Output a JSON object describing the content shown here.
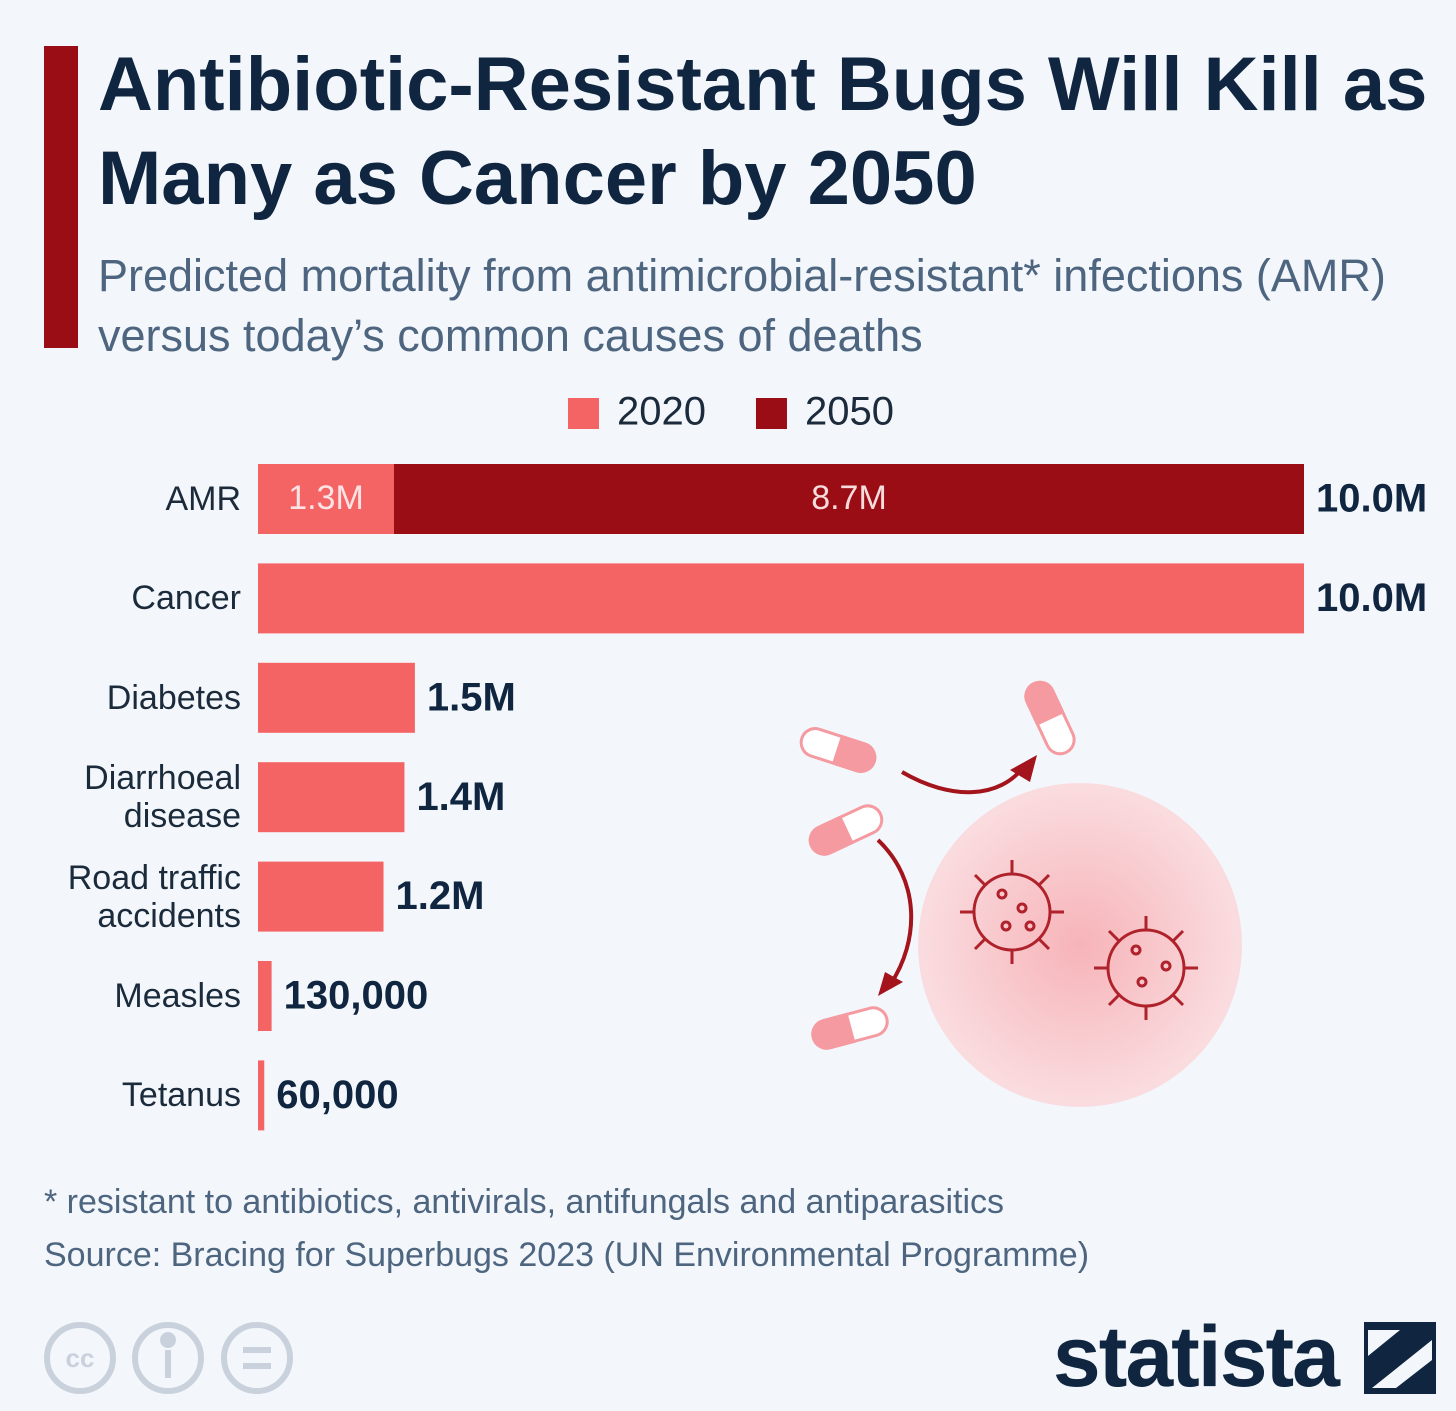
{
  "chart_data": {
    "type": "bar",
    "title": "Antibiotic-Resistant Bugs Will Kill as Many as Cancer by 2050",
    "subtitle": "Predicted mortality from antimicrobial-resistant* infections (AMR) versus today’s common causes of deaths",
    "categories": [
      "AMR",
      "Cancer",
      "Diabetes",
      "Diarrhoeal disease",
      "Road traffic accidents",
      "Measles",
      "Tetanus"
    ],
    "series": [
      {
        "name": "2020",
        "color": "#f46464",
        "values": [
          1300000,
          10000000,
          1500000,
          1400000,
          1200000,
          130000,
          60000
        ],
        "value_labels": [
          "1.3M",
          null,
          null,
          null,
          null,
          null,
          null
        ]
      },
      {
        "name": "2050",
        "color": "#9b0d14",
        "values": [
          8700000,
          null,
          null,
          null,
          null,
          null,
          null
        ],
        "value_labels": [
          "8.7M",
          null,
          null,
          null,
          null,
          null,
          null
        ]
      }
    ],
    "totals": [
      10000000,
      10000000,
      1500000,
      1400000,
      1200000,
      130000,
      60000
    ],
    "total_labels": [
      "10.0M",
      "10.0M",
      "1.5M",
      "1.4M",
      "1.2M",
      "130,000",
      "60,000"
    ],
    "stacked": true,
    "footnote": "* resistant to antibiotics, antivirals, antifungals and antiparasitics",
    "source": "Source: Bracing for Superbugs 2023 (UN Environmental Programme)",
    "brand": "statista"
  }
}
